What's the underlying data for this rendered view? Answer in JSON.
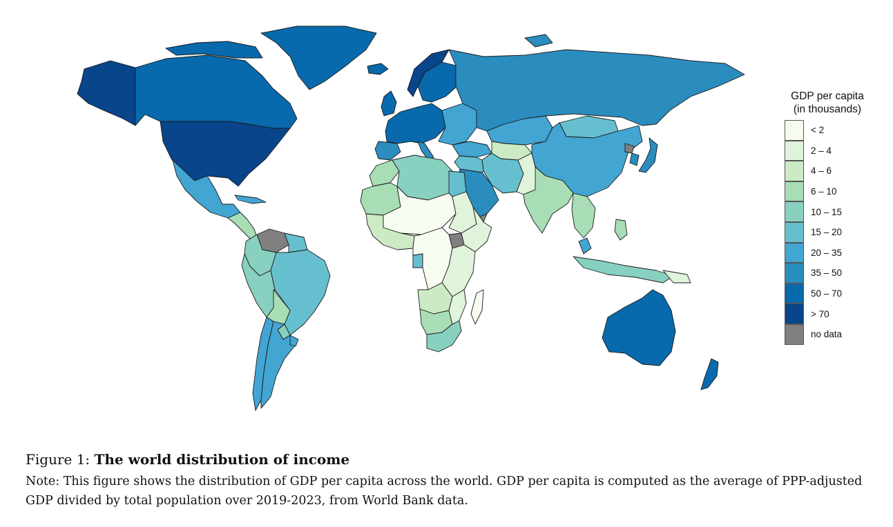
{
  "legend": {
    "title_line1": "GDP per capita",
    "title_line2": "(in thousands)",
    "items": [
      {
        "label": "< 2",
        "color": "#f7fcf0"
      },
      {
        "label": "2 – 4",
        "color": "#e0f3db"
      },
      {
        "label": "4 – 6",
        "color": "#ccebc5"
      },
      {
        "label": "6 – 10",
        "color": "#a8ddb5"
      },
      {
        "label": "10 – 15",
        "color": "#88d0c0"
      },
      {
        "label": "15 – 20",
        "color": "#66bfcf"
      },
      {
        "label": "20 – 35",
        "color": "#42a5d2"
      },
      {
        "label": "35 – 50",
        "color": "#2b8cbe"
      },
      {
        "label": "50 – 70",
        "color": "#0869ac"
      },
      {
        "label": "> 70",
        "color": "#08458a"
      },
      {
        "label": "no data",
        "color": "#808080"
      }
    ]
  },
  "caption": {
    "prefix": "Figure 1: ",
    "title": "The world distribution of income",
    "note": "Note: This figure shows the distribution of GDP per capita across the world. GDP per capita is computed as the average of PPP-adjusted GDP divided by total population over 2019-2023, from World Bank data."
  }
}
